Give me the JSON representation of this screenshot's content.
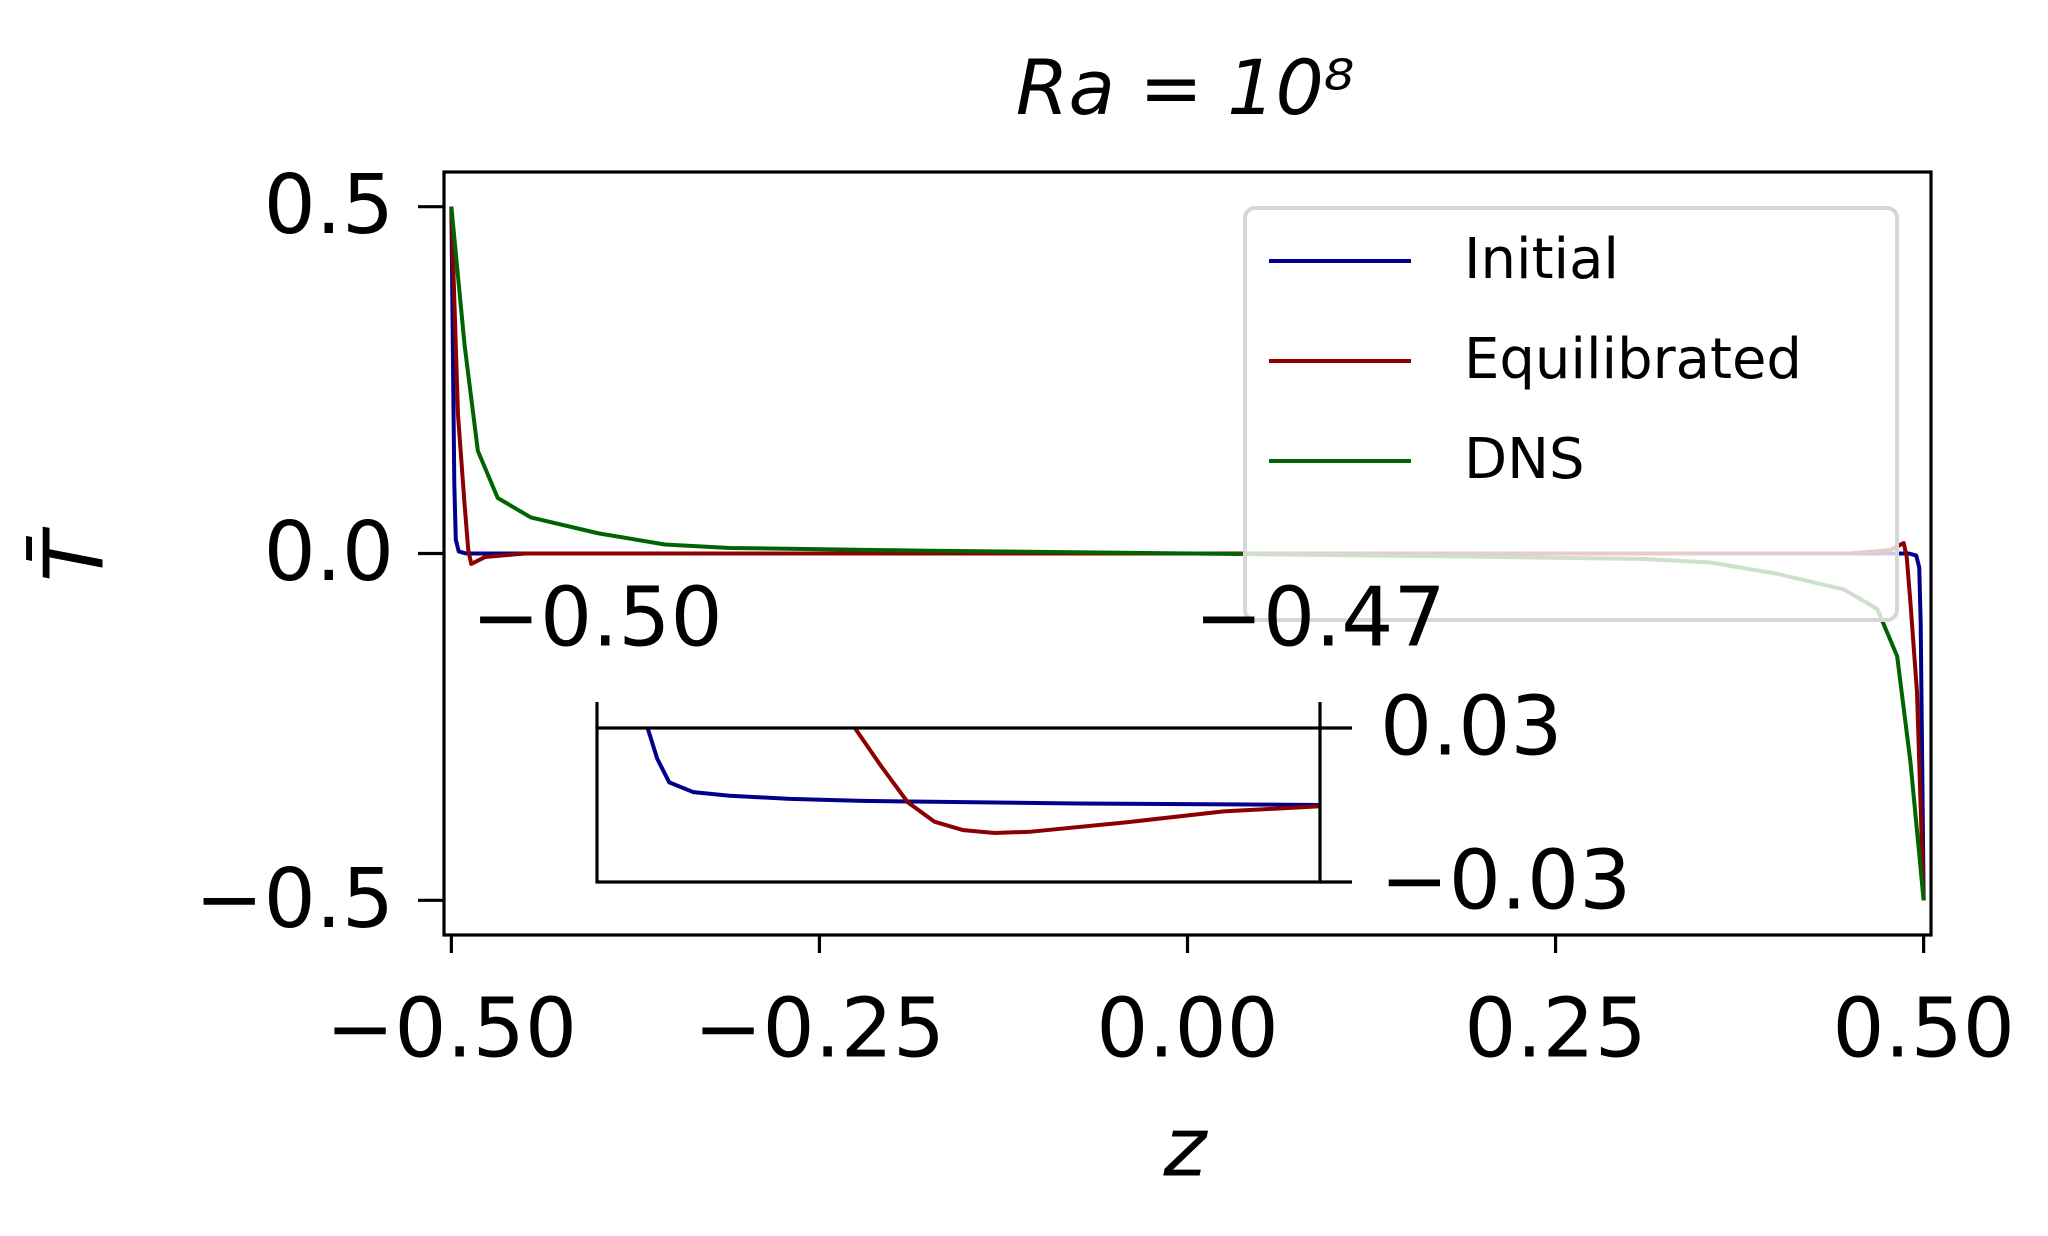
{
  "chart_data": [
    {
      "type": "line",
      "title": "Ra = 10⁸",
      "xlabel": "z",
      "ylabel": "T̄",
      "xlim": [
        -0.505,
        0.505
      ],
      "ylim": [
        -0.55,
        0.55
      ],
      "xticks": [
        {
          "value": -0.5,
          "label": "−0.50"
        },
        {
          "value": -0.25,
          "label": "−0.25"
        },
        {
          "value": 0,
          "label": "0.00"
        },
        {
          "value": 0.25,
          "label": "0.25"
        },
        {
          "value": 0.5,
          "label": "0.50"
        }
      ],
      "yticks": [
        {
          "value": -0.5,
          "label": "−0.5"
        },
        {
          "value": 0,
          "label": "0.0"
        },
        0.5
      ],
      "grid": false,
      "legend": "upper right",
      "xaxis_position": "bottom",
      "yaxis_position": "left",
      "series": [
        {
          "name": "Initial",
          "color": "#00008b",
          "x": [
            -0.5,
            -0.499,
            -0.498,
            -0.497,
            -0.495,
            -0.49,
            0.49,
            0.495,
            0.497,
            0.498,
            0.499,
            0.5
          ],
          "values": [
            0.5,
            0.3,
            0.1,
            0.02,
            0.003,
            0,
            0,
            -0.003,
            -0.02,
            -0.1,
            -0.3,
            -0.5
          ]
        },
        {
          "name": "Equilibrated",
          "color": "#8b0000",
          "x": [
            -0.5,
            -0.4955,
            -0.491,
            -0.4885,
            -0.4865,
            -0.477,
            -0.45,
            0.45,
            0.477,
            0.4865,
            0.4885,
            0.491,
            0.4955,
            0.5
          ],
          "values": [
            0.5,
            0.2,
            0.07,
            0.005,
            -0.015,
            -0.005,
            0,
            0,
            0.005,
            0.015,
            -0.005,
            -0.07,
            -0.2,
            -0.5
          ]
        },
        {
          "name": "DNS",
          "color": "#006400",
          "x": [
            -0.5,
            -0.491,
            -0.482,
            -0.4685,
            -0.446,
            -0.4,
            -0.355,
            -0.311,
            -0.176,
            0.004,
            0.176,
            0.311,
            0.355,
            0.4,
            0.446,
            0.4685,
            0.482,
            0.491,
            0.5
          ],
          "values": [
            0.5,
            0.3,
            0.148,
            0.08,
            0.052,
            0.029,
            0.013,
            0.008,
            0.004,
            0,
            -0.004,
            -0.008,
            -0.013,
            -0.029,
            -0.052,
            -0.08,
            -0.148,
            -0.3,
            -0.5
          ]
        }
      ]
    },
    {
      "type": "line",
      "xlim": [
        -0.5,
        -0.47
      ],
      "ylim": [
        -0.03,
        0.03
      ],
      "xticks": [
        {
          "value": -0.5,
          "label": "−0.50"
        },
        {
          "value": -0.47,
          "label": "−0.47"
        }
      ],
      "yticks": [
        {
          "value": -0.03,
          "label": "−0.03"
        },
        0.03
      ],
      "grid": false,
      "xaxis_position": "top",
      "yaxis_position": "right",
      "series": [
        {
          "color": "#00008b",
          "x": [
            -0.4979,
            -0.4975,
            -0.497,
            -0.496,
            -0.4945,
            -0.492,
            -0.489,
            -0.48,
            -0.47
          ],
          "values": [
            0.03,
            0.018,
            0.0088,
            0.005,
            0.0036,
            0.0024,
            0.0016,
            0.0006,
            0
          ]
        },
        {
          "color": "#8b0000",
          "x": [
            -0.4893,
            -0.4882,
            -0.4871,
            -0.486,
            -0.4848,
            -0.4835,
            -0.482,
            -0.478,
            -0.474,
            -0.47
          ],
          "values": [
            0.03,
            0.015,
            0.001,
            -0.0065,
            -0.0098,
            -0.0109,
            -0.0104,
            -0.0067,
            -0.0025,
            -0.0005
          ]
        }
      ]
    }
  ]
}
